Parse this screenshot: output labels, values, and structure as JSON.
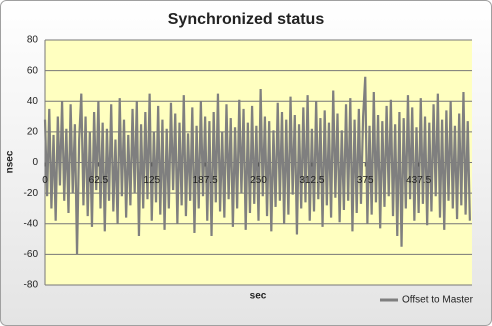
{
  "chart_data": {
    "type": "line",
    "title": "Synchronized status",
    "x_label": "sec",
    "y_label": "nsec",
    "x": [
      0,
      2.5,
      5,
      7.5,
      10,
      12.5,
      15,
      17.5,
      20,
      22.5,
      25,
      27.5,
      30,
      32.5,
      35,
      37.5,
      40,
      42.5,
      45,
      47.5,
      50,
      52.5,
      55,
      57.5,
      60,
      62.5,
      65,
      67.5,
      70,
      72.5,
      75,
      77.5,
      80,
      82.5,
      85,
      87.5,
      90,
      92.5,
      95,
      97.5,
      100,
      102.5,
      105,
      107.5,
      110,
      112.5,
      115,
      117.5,
      120,
      122.5,
      125,
      127.5,
      130,
      132.5,
      135,
      137.5,
      140,
      142.5,
      145,
      147.5,
      150,
      152.5,
      155,
      157.5,
      160,
      162.5,
      165,
      167.5,
      170,
      172.5,
      175,
      177.5,
      180,
      182.5,
      185,
      187.5,
      190,
      192.5,
      195,
      197.5,
      200,
      202.5,
      205,
      207.5,
      210,
      212.5,
      215,
      217.5,
      220,
      222.5,
      225,
      227.5,
      230,
      232.5,
      235,
      237.5,
      240,
      242.5,
      245,
      247.5,
      250,
      252.5,
      255,
      257.5,
      260,
      262.5,
      265,
      267.5,
      270,
      272.5,
      275,
      277.5,
      280,
      282.5,
      285,
      287.5,
      290,
      292.5,
      295,
      297.5,
      300,
      302.5,
      305,
      307.5,
      310,
      312.5,
      315,
      317.5,
      320,
      322.5,
      325,
      327.5,
      330,
      332.5,
      335,
      337.5,
      340,
      342.5,
      345,
      347.5,
      350,
      352.5,
      355,
      357.5,
      360,
      362.5,
      365,
      367.5,
      370,
      372.5,
      375,
      377.5,
      380,
      382.5,
      385,
      387.5,
      390,
      392.5,
      395,
      397.5,
      400,
      402.5,
      405,
      407.5,
      410,
      412.5,
      415,
      417.5,
      420,
      422.5,
      425,
      427.5,
      430,
      432.5,
      435,
      437.5,
      440,
      442.5,
      445,
      447.5,
      450,
      452.5,
      455,
      457.5,
      460,
      462.5,
      465,
      467.5,
      470,
      472.5,
      475,
      477.5,
      480,
      482.5,
      485,
      487.5,
      490,
      492.5,
      495,
      497.5
    ],
    "series": [
      {
        "name": "Offset to Master",
        "color": "#7f7f7f",
        "values": [
          28,
          -22,
          35,
          -30,
          18,
          -38,
          30,
          -15,
          40,
          -25,
          22,
          -33,
          38,
          -20,
          25,
          -60,
          15,
          45,
          -28,
          30,
          -35,
          20,
          -42,
          33,
          -18,
          40,
          -30,
          26,
          -45,
          22,
          -25,
          38,
          -32,
          15,
          -40,
          42,
          -22,
          28,
          -36,
          18,
          -28,
          35,
          -20,
          40,
          -48,
          25,
          -30,
          33,
          -24,
          45,
          -38,
          20,
          -26,
          37,
          -34,
          28,
          -44,
          22,
          -30,
          39,
          -18,
          32,
          -40,
          26,
          -28,
          44,
          -35,
          19,
          -25,
          36,
          -46,
          24,
          -30,
          40,
          -22,
          30,
          -38,
          27,
          -48,
          33,
          -26,
          45,
          -32,
          20,
          -36,
          38,
          -24,
          29,
          -42,
          23,
          -30,
          41,
          -20,
          35,
          -44,
          26,
          -33,
          37,
          -27,
          24,
          -38,
          48,
          -22,
          30,
          -35,
          27,
          -45,
          21,
          -29,
          39,
          -25,
          33,
          -40,
          28,
          -34,
          43,
          -21,
          31,
          -47,
          25,
          -30,
          36,
          -26,
          44,
          -38,
          22,
          -32,
          40,
          -24,
          29,
          -42,
          34,
          -28,
          26,
          -36,
          47,
          -23,
          32,
          -39,
          21,
          -31,
          38,
          -25,
          42,
          -45,
          28,
          -33,
          35,
          -27,
          30,
          56,
          -40,
          24,
          -34,
          46,
          -26,
          31,
          -43,
          27,
          -29,
          37,
          -22,
          41,
          -35,
          25,
          -48,
          33,
          -55,
          29,
          -30,
          44,
          -24,
          36,
          -38,
          23,
          -33,
          42,
          -27,
          30,
          -41,
          26,
          -32,
          38,
          -22,
          45,
          -36,
          28,
          -44,
          34,
          -25,
          40,
          -30,
          24,
          -37,
          32,
          -28,
          46,
          -34,
          27,
          -38
        ]
      }
    ],
    "xlim": [
      0,
      500
    ],
    "xticks": [
      0,
      62.5,
      125,
      187.5,
      250,
      312.5,
      375,
      437.5
    ],
    "ylim": [
      -80,
      80
    ],
    "yticks": [
      -80,
      -60,
      -40,
      -20,
      0,
      20,
      40,
      60,
      80
    ],
    "grid": true,
    "legend": "bottom-right"
  }
}
